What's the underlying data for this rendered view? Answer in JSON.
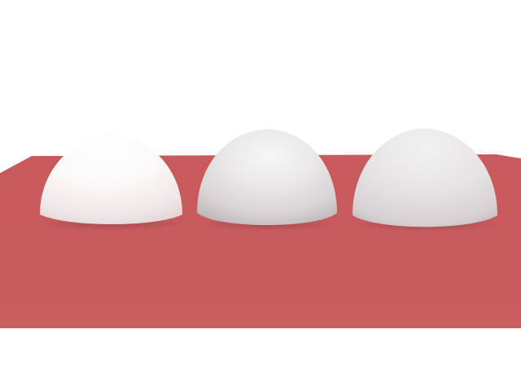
{
  "scene": {
    "background_color": "#ffffff",
    "floor_color": "#c95c5e",
    "floor_far_color": "#c85a5d",
    "floor_near_color": "#c95d5f"
  },
  "spheres": [
    {
      "material": "diffuse-white",
      "base_color": "#f3eeee",
      "shade_color": "#e6d4d6"
    },
    {
      "material": "glossy-grey",
      "base_color": "#e6e3e3",
      "shade_color": "#9e9d9e"
    },
    {
      "material": "matte-grey",
      "base_color": "#e5e2e2",
      "shade_color": "#b9b4b5"
    }
  ]
}
